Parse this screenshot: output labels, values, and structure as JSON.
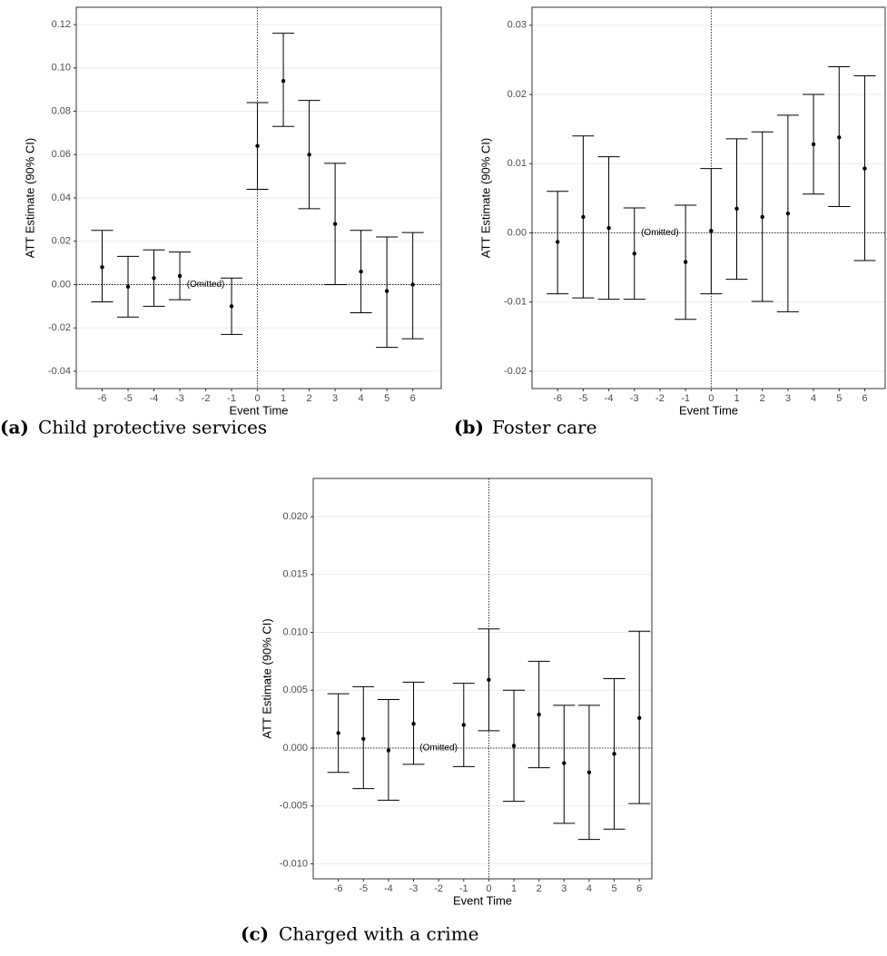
{
  "chart_data": [
    {
      "type": "errorbar",
      "caption_label": "(a)",
      "caption": "Child protective services",
      "x_label": "Event Time",
      "y_label": "ATT Estimate (90% CI)",
      "color": "#000000",
      "grid": true,
      "x": [
        -6,
        -5,
        -4,
        -3,
        -2,
        -1,
        0,
        1,
        2,
        3,
        4,
        5,
        6
      ],
      "values": [
        0.008,
        -0.001,
        0.003,
        0.004,
        null,
        -0.01,
        0.064,
        0.094,
        0.06,
        0.028,
        0.006,
        -0.003,
        0.0
      ],
      "lower": [
        -0.008,
        -0.015,
        -0.01,
        -0.007,
        null,
        -0.023,
        0.044,
        0.073,
        0.035,
        0.0,
        -0.013,
        -0.029,
        -0.025
      ],
      "upper": [
        0.025,
        0.013,
        0.016,
        0.015,
        null,
        0.003,
        0.084,
        0.116,
        0.085,
        0.056,
        0.025,
        0.022,
        0.024
      ],
      "annotation": {
        "text": "(Omitted)",
        "x": -2,
        "y": 0
      },
      "xlim": [
        -7,
        7.1
      ],
      "xticks": [
        -6,
        -5,
        -4,
        -3,
        -2,
        -1,
        0,
        1,
        2,
        3,
        4,
        5,
        6
      ],
      "ylim": [
        -0.048,
        0.128
      ],
      "yticks": [
        {
          "value": -0.04,
          "label": "-0.04"
        },
        {
          "value": -0.02,
          "label": "-0.02"
        },
        {
          "value": 0,
          "label": "0.00"
        },
        0.02,
        0.04,
        0.06,
        0.08,
        {
          "value": 0.1,
          "label": "0.10"
        },
        0.12
      ]
    },
    {
      "type": "errorbar",
      "caption_label": "(b)",
      "caption": "Foster care",
      "x_label": "Event Time",
      "y_label": "ATT Estimate (90% CI)",
      "color": "#000000",
      "grid": true,
      "x": [
        -6,
        -5,
        -4,
        -3,
        -2,
        -1,
        0,
        1,
        2,
        3,
        4,
        5,
        6
      ],
      "values": [
        -0.0013,
        0.0023,
        0.0007,
        -0.003,
        null,
        -0.0042,
        0.0003,
        0.0035,
        0.0023,
        0.0028,
        0.0128,
        0.0138,
        0.0093
      ],
      "lower": [
        -0.0088,
        -0.0094,
        -0.0096,
        -0.0096,
        null,
        -0.0125,
        -0.0088,
        -0.0067,
        -0.0099,
        -0.0114,
        0.0056,
        0.0038,
        -0.004
      ],
      "upper": [
        0.006,
        0.014,
        0.011,
        0.0036,
        null,
        0.004,
        0.0093,
        0.0136,
        0.0146,
        0.017,
        0.02,
        0.024,
        0.0227
      ],
      "annotation": {
        "text": "(Omitted)",
        "x": -2,
        "y": 0
      },
      "xlim": [
        -7,
        6.8
      ],
      "xticks": [
        -6,
        -5,
        -4,
        -3,
        -2,
        -1,
        0,
        1,
        2,
        3,
        4,
        5,
        6
      ],
      "ylim": [
        -0.0225,
        0.0326
      ],
      "yticks": [
        -0.02,
        -0.01,
        {
          "value": 0,
          "label": "0.00"
        },
        0.01,
        0.02,
        0.03
      ]
    },
    {
      "type": "errorbar",
      "caption_label": "(c)",
      "caption": "Charged with a crime",
      "x_label": "Event Time",
      "y_label": "ATT Estimate (90% CI)",
      "color": "#000000",
      "grid": true,
      "x": [
        -6,
        -5,
        -4,
        -3,
        -2,
        -1,
        0,
        1,
        2,
        3,
        4,
        5,
        6
      ],
      "values": [
        0.0013,
        0.0008,
        -0.0002,
        0.0021,
        null,
        0.002,
        0.0059,
        0.0002,
        0.0029,
        -0.0013,
        -0.0021,
        -0.0005,
        0.0026
      ],
      "lower": [
        -0.0021,
        -0.0035,
        -0.0045,
        -0.0014,
        null,
        -0.0016,
        0.0015,
        -0.0046,
        -0.0017,
        -0.0065,
        -0.0079,
        -0.007,
        -0.0048
      ],
      "upper": [
        0.0047,
        0.0053,
        0.0042,
        0.0057,
        null,
        0.0056,
        0.0103,
        0.005,
        0.0075,
        0.0037,
        0.0037,
        0.006,
        0.0101
      ],
      "annotation": {
        "text": "(Omitted)",
        "x": -2,
        "y": 0
      },
      "xlim": [
        -7,
        6.5
      ],
      "xticks": [
        -6,
        -5,
        -4,
        -3,
        -2,
        -1,
        0,
        1,
        2,
        3,
        4,
        5,
        6
      ],
      "ylim": [
        -0.0113,
        0.0233
      ],
      "yticks": [
        {
          "value": -0.01,
          "label": "-0.010"
        },
        -0.005,
        {
          "value": 0,
          "label": "0.000"
        },
        0.005,
        {
          "value": 0.01,
          "label": "0.010"
        },
        0.015,
        {
          "value": 0.02,
          "label": "0.020"
        }
      ]
    }
  ]
}
